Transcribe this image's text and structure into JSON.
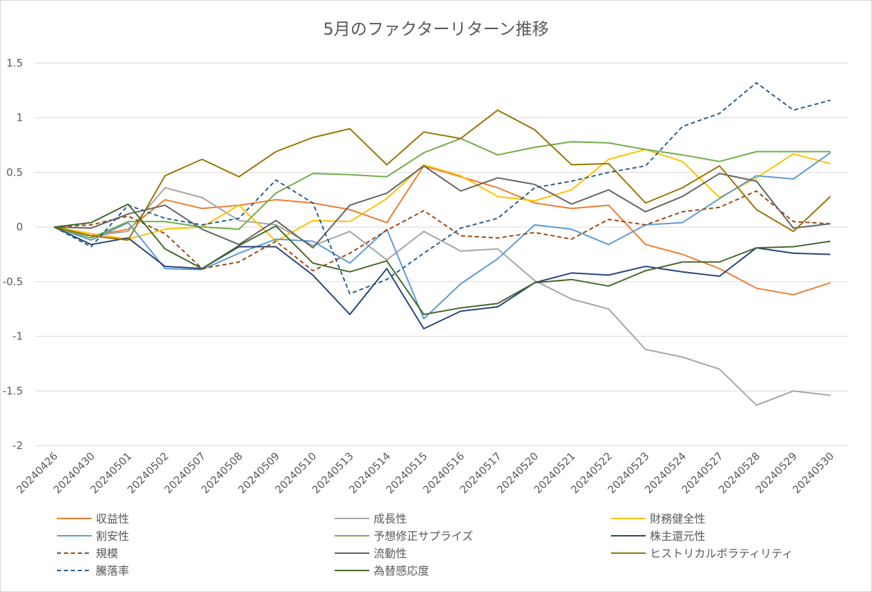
{
  "chart_data": {
    "type": "line",
    "title": "5月のファクターリターン推移",
    "xlabel": "",
    "ylabel": "",
    "ylim": [
      -2,
      1.5
    ],
    "ytick_step": 0.5,
    "ytick_labels": [
      "1.5",
      "1",
      "0.5",
      "0",
      "-0.5",
      "-1",
      "-1.5",
      "-2"
    ],
    "grid": true,
    "legend_position": "bottom",
    "categories": [
      "20240426",
      "20240430",
      "20240501",
      "20240502",
      "20240507",
      "20240508",
      "20240509",
      "20240510",
      "20240513",
      "20240514",
      "20240515",
      "20240516",
      "20240517",
      "20240520",
      "20240521",
      "20240522",
      "20240523",
      "20240524",
      "20240527",
      "20240528",
      "20240529",
      "20240530"
    ],
    "series": [
      {
        "name": "収益性",
        "color": "#ED7D31",
        "dash": false,
        "values": [
          0,
          -0.08,
          -0.02,
          0.25,
          0.17,
          0.2,
          0.25,
          0.22,
          0.16,
          0.04,
          0.56,
          0.46,
          0.36,
          0.22,
          0.17,
          0.2,
          -0.16,
          -0.25,
          -0.38,
          -0.56,
          -0.62,
          -0.51
        ]
      },
      {
        "name": "成長性",
        "color": "#A5A5A5",
        "dash": false,
        "values": [
          0,
          -0.08,
          -0.04,
          0.36,
          0.27,
          0.06,
          0.02,
          -0.17,
          -0.04,
          -0.3,
          -0.04,
          -0.22,
          -0.2,
          -0.49,
          -0.66,
          -0.75,
          -1.12,
          -1.19,
          -1.3,
          -1.63,
          -1.5,
          -1.54
        ]
      },
      {
        "name": "財務健全性",
        "color": "#FFC000",
        "dash": false,
        "values": [
          0,
          -0.06,
          -0.11,
          -0.02,
          0.0,
          0.2,
          -0.13,
          0.06,
          0.05,
          0.26,
          0.57,
          0.47,
          0.28,
          0.24,
          0.34,
          0.62,
          0.71,
          0.6,
          0.27,
          0.45,
          0.67,
          0.58
        ]
      },
      {
        "name": "割安性",
        "color": "#5B9BD5",
        "dash": false,
        "values": [
          0,
          -0.12,
          0.04,
          -0.38,
          -0.39,
          -0.24,
          -0.11,
          -0.13,
          -0.33,
          -0.02,
          -0.84,
          -0.52,
          -0.29,
          0.02,
          -0.02,
          -0.16,
          0.02,
          0.04,
          0.26,
          0.47,
          0.44,
          0.68
        ]
      },
      {
        "name": "予想修正サプライズ",
        "color": "#70AD47",
        "dash": false,
        "values": [
          0,
          -0.1,
          0.05,
          0.05,
          0.0,
          -0.02,
          0.31,
          0.49,
          0.48,
          0.46,
          0.68,
          0.81,
          0.66,
          0.73,
          0.78,
          0.77,
          0.71,
          0.66,
          0.6,
          0.69,
          0.69,
          0.69
        ]
      },
      {
        "name": "株主還元性",
        "color": "#264478",
        "dash": false,
        "values": [
          0,
          -0.16,
          -0.1,
          -0.36,
          -0.38,
          -0.18,
          -0.18,
          -0.44,
          -0.8,
          -0.38,
          -0.93,
          -0.77,
          -0.73,
          -0.51,
          -0.42,
          -0.44,
          -0.36,
          -0.41,
          -0.45,
          -0.19,
          -0.24,
          -0.25
        ]
      },
      {
        "name": "規模",
        "color": "#9E480E",
        "dash": true,
        "values": [
          0,
          0.02,
          0.1,
          -0.06,
          -0.38,
          -0.32,
          -0.13,
          -0.4,
          -0.24,
          -0.03,
          0.15,
          -0.08,
          -0.1,
          -0.05,
          -0.11,
          0.07,
          0.02,
          0.14,
          0.18,
          0.33,
          0.05,
          0.03
        ]
      },
      {
        "name": "流動性",
        "color": "#636363",
        "dash": false,
        "values": [
          0,
          -0.01,
          0.12,
          0.2,
          -0.02,
          -0.16,
          0.06,
          -0.19,
          0.2,
          0.31,
          0.56,
          0.33,
          0.45,
          0.39,
          0.21,
          0.34,
          0.14,
          0.28,
          0.49,
          0.42,
          -0.01,
          0.03
        ]
      },
      {
        "name": "ヒストリカルボラティリティ",
        "color": "#997300",
        "dash": false,
        "values": [
          0,
          -0.08,
          -0.12,
          0.47,
          0.62,
          0.46,
          0.69,
          0.82,
          0.9,
          0.57,
          0.87,
          0.81,
          1.07,
          0.89,
          0.57,
          0.58,
          0.22,
          0.36,
          0.56,
          0.16,
          -0.04,
          0.28
        ]
      },
      {
        "name": "騰落率",
        "color": "#255E91",
        "dash": true,
        "values": [
          0,
          -0.18,
          0.2,
          0.08,
          0.02,
          0.08,
          0.43,
          0.22,
          -0.61,
          -0.48,
          -0.24,
          -0.01,
          0.08,
          0.36,
          0.42,
          0.5,
          0.56,
          0.92,
          1.04,
          1.32,
          1.07,
          1.16
        ]
      },
      {
        "name": "為替感応度",
        "color": "#43682B",
        "dash": false,
        "values": [
          0,
          0.04,
          0.21,
          -0.2,
          -0.38,
          -0.17,
          0.01,
          -0.33,
          -0.41,
          -0.31,
          -0.8,
          -0.74,
          -0.7,
          -0.51,
          -0.48,
          -0.54,
          -0.4,
          -0.32,
          -0.32,
          -0.19,
          -0.18,
          -0.13
        ]
      }
    ]
  }
}
